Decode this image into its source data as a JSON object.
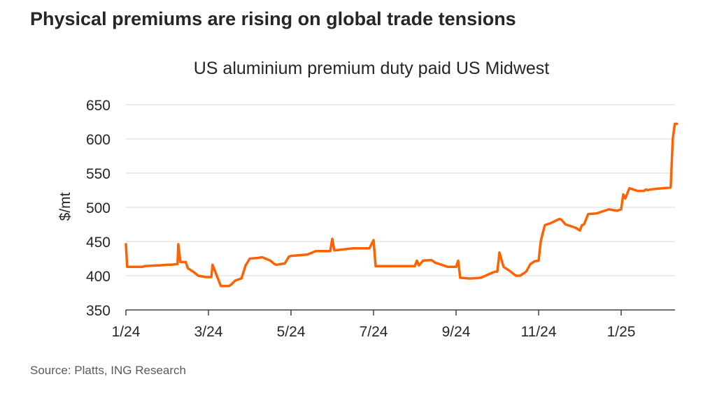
{
  "headline": "Physical premiums are rising on global trade tensions",
  "source": "Source: Platts, ING Research",
  "colors": {
    "line": "#FF6200",
    "grid": "#d9d9d9",
    "axis": "#404040"
  },
  "chart_data": {
    "type": "line",
    "title": "US aluminium premium duty paid US Midwest",
    "ylabel": "$/mt",
    "xlabel": "",
    "ylim": [
      350,
      650
    ],
    "yticks": [
      350,
      400,
      450,
      500,
      550,
      600,
      650
    ],
    "xlim": [
      0,
      13.6
    ],
    "x_ticks": [
      {
        "x": 0,
        "label": "1/24"
      },
      {
        "x": 2,
        "label": "3/24"
      },
      {
        "x": 4,
        "label": "5/24"
      },
      {
        "x": 6,
        "label": "7/24"
      },
      {
        "x": 8,
        "label": "9/24"
      },
      {
        "x": 10,
        "label": "11/24"
      },
      {
        "x": 12,
        "label": "1/25"
      }
    ],
    "grid": true,
    "legend": "none",
    "series": [
      {
        "x": [
          0,
          0.03,
          0.2,
          0.4,
          0.45,
          0.75,
          0.8,
          1.0,
          1.1,
          1.25,
          1.27,
          1.32,
          1.45,
          1.5,
          1.65,
          1.75,
          1.95,
          2.0,
          2.02,
          2.07,
          2.1,
          2.3,
          2.5,
          2.55,
          2.65,
          2.8,
          2.9,
          3.0,
          3.2,
          3.3,
          3.5,
          3.6,
          3.65,
          3.85,
          3.95,
          4.0,
          4.2,
          4.4,
          4.6,
          4.95,
          5.0,
          5.05,
          5.5,
          5.9,
          6.0,
          6.05,
          6.5,
          7.0,
          7.05,
          7.1,
          7.2,
          7.4,
          7.5,
          7.6,
          7.8,
          8.0,
          8.05,
          8.1,
          8.3,
          8.4,
          8.6,
          8.9,
          8.95,
          9.0,
          9.05,
          9.15,
          9.3,
          9.45,
          9.55,
          9.7,
          9.8,
          9.9,
          10.0,
          10.05,
          10.1,
          10.15,
          10.3,
          10.5,
          10.55,
          10.65,
          10.8,
          10.9,
          11.0,
          11.05,
          11.1,
          11.2,
          11.4,
          11.6,
          11.7,
          11.9,
          12.0,
          12.05,
          12.1,
          12.2,
          12.4,
          12.55,
          12.6,
          12.65,
          12.7,
          12.85,
          13.2,
          13.25,
          13.3,
          13.35
        ],
        "values": [
          446,
          413,
          413,
          413,
          414,
          415,
          415,
          416,
          416,
          417,
          446,
          420,
          420,
          411,
          405,
          400,
          398,
          398,
          398,
          398,
          416,
          385,
          385,
          387,
          393,
          396,
          415,
          425,
          426,
          427,
          422,
          417,
          416,
          418,
          428,
          429,
          430,
          431,
          436,
          436,
          454,
          437,
          440,
          440,
          452,
          414,
          414,
          414,
          422,
          415,
          422,
          423,
          419,
          417,
          413,
          413,
          422,
          397,
          396,
          396,
          397,
          405,
          406,
          406,
          434,
          413,
          407,
          400,
          400,
          406,
          417,
          421,
          422,
          450,
          462,
          474,
          477,
          483,
          482,
          475,
          472,
          470,
          466,
          474,
          475,
          490,
          491,
          495,
          497,
          495,
          497,
          519,
          513,
          528,
          524,
          524,
          526,
          525,
          526,
          527,
          529,
          600,
          622,
          622
        ]
      }
    ]
  }
}
